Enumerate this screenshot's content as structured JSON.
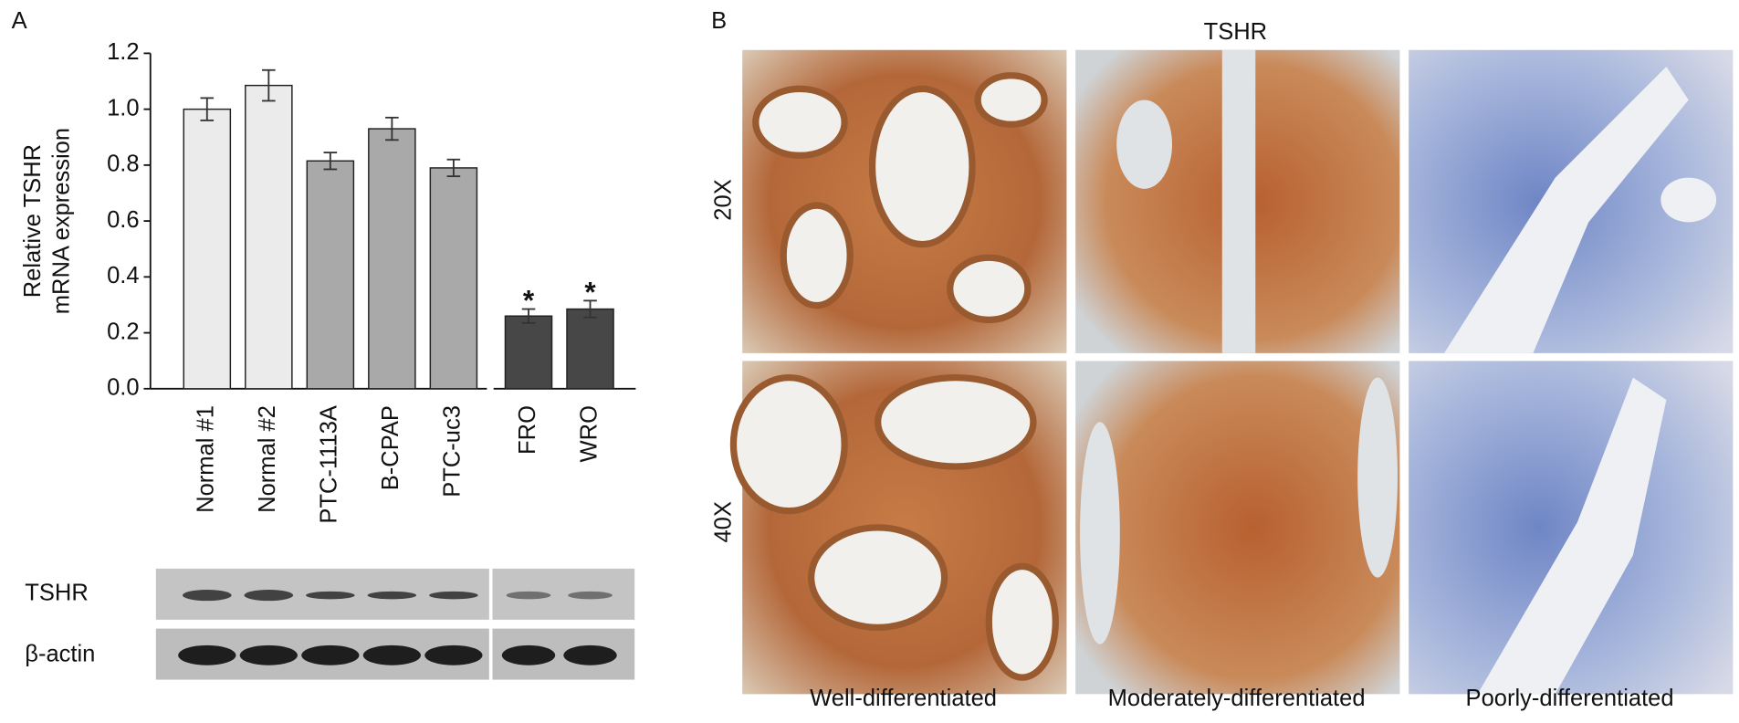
{
  "panel_labels": [
    "A",
    "B"
  ],
  "chart_data": {
    "type": "bar",
    "y_label_lines": [
      "Relative TSHR",
      "mRNA expression"
    ],
    "categories": [
      "Normal #1",
      "Normal #2",
      "PTC-1113A",
      "B-CPAP",
      "PTC-uc3",
      "FRO",
      "WRO"
    ],
    "values": [
      1.0,
      1.085,
      0.815,
      0.93,
      0.79,
      0.26,
      0.285
    ],
    "errors": [
      0.04,
      0.055,
      0.03,
      0.04,
      0.03,
      0.025,
      0.03
    ],
    "colors": [
      "#ebebeb",
      "#ebebeb",
      "#a9a9a9",
      "#a9a9a9",
      "#a9a9a9",
      "#474747",
      "#474747"
    ],
    "significance_labels": [
      null,
      null,
      null,
      null,
      null,
      "*",
      "*"
    ],
    "ylim": [
      0,
      1.2
    ],
    "yticks": [
      {
        "value": 0,
        "label": "0.0"
      },
      0.2,
      0.4,
      0.6,
      0.8,
      {
        "value": 1,
        "label": "1.0"
      },
      1.2
    ]
  },
  "blot": {
    "rows": [
      "TSHR",
      "β-actin"
    ]
  },
  "histology": {
    "title": "TSHR",
    "row_labels": [
      "20X",
      "40X"
    ],
    "column_labels": [
      "Well-differentiated",
      "Moderately-differentiated",
      "Poorly-differentiated"
    ]
  }
}
